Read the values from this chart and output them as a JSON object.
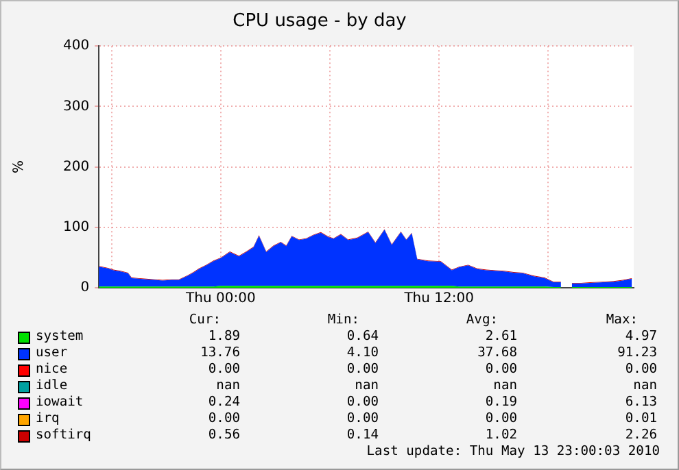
{
  "chart_data": {
    "type": "area",
    "stacked": true,
    "title": "CPU usage - by day",
    "ylabel": "%",
    "x": [
      "2010-05-12T17:18",
      "2010-05-12T17:48",
      "2010-05-12T18:06",
      "2010-05-12T18:30",
      "2010-05-12T18:54",
      "2010-05-12T19:06",
      "2010-05-12T19:30",
      "2010-05-12T19:54",
      "2010-05-12T20:24",
      "2010-05-12T20:48",
      "2010-05-12T21:18",
      "2010-05-12T21:42",
      "2010-05-12T22:12",
      "2010-05-12T22:30",
      "2010-05-12T22:48",
      "2010-05-12T23:12",
      "2010-05-12T23:36",
      "2010-05-13T00:00",
      "2010-05-13T00:30",
      "2010-05-13T01:00",
      "2010-05-13T01:24",
      "2010-05-13T01:48",
      "2010-05-13T02:06",
      "2010-05-13T02:30",
      "2010-05-13T02:54",
      "2010-05-13T03:18",
      "2010-05-13T03:36",
      "2010-05-13T03:54",
      "2010-05-13T04:18",
      "2010-05-13T04:42",
      "2010-05-13T05:06",
      "2010-05-13T05:30",
      "2010-05-13T05:54",
      "2010-05-13T06:12",
      "2010-05-13T06:36",
      "2010-05-13T07:00",
      "2010-05-13T07:30",
      "2010-05-13T08:06",
      "2010-05-13T08:30",
      "2010-05-13T09:00",
      "2010-05-13T09:24",
      "2010-05-13T09:54",
      "2010-05-13T10:12",
      "2010-05-13T10:30",
      "2010-05-13T10:48",
      "2010-05-13T11:24",
      "2010-05-13T12:06",
      "2010-05-13T12:42",
      "2010-05-13T13:06",
      "2010-05-13T13:36",
      "2010-05-13T14:06",
      "2010-05-13T14:36",
      "2010-05-13T15:06",
      "2010-05-13T15:36",
      "2010-05-13T16:06",
      "2010-05-13T16:36",
      "2010-05-13T17:12",
      "2010-05-13T17:48",
      "2010-05-13T18:18",
      "2010-05-13T18:42",
      "2010-05-13T19:00",
      "2010-05-13T19:18",
      "2010-05-13T19:48",
      "2010-05-13T20:18",
      "2010-05-13T21:00",
      "2010-05-13T21:36",
      "2010-05-13T22:06",
      "2010-05-13T22:36"
    ],
    "xlim": [
      "2010-05-12T17:18",
      "2010-05-13T22:42"
    ],
    "xticks": [
      {
        "value": "2010-05-12T18:00",
        "label": null
      },
      {
        "value": "2010-05-13T00:00",
        "label": "Thu 00:00"
      },
      {
        "value": "2010-05-13T06:00",
        "label": null
      },
      {
        "value": "2010-05-13T12:00",
        "label": "Thu 12:00"
      },
      {
        "value": "2010-05-13T18:00",
        "label": null
      }
    ],
    "ylim": [
      0,
      400
    ],
    "yticks": [
      0,
      100,
      200,
      300,
      400
    ],
    "grid": true,
    "legend": "bottom",
    "marker": "none",
    "series": [
      {
        "name": "system",
        "color": "#00e000",
        "values": [
          2,
          2,
          2,
          2,
          2,
          2,
          2,
          2,
          2,
          2,
          2,
          2,
          2,
          2,
          2,
          2,
          2,
          3,
          3,
          3,
          3,
          3,
          3,
          3,
          3,
          3,
          3,
          3,
          3,
          3,
          3,
          3,
          3,
          3,
          3,
          3,
          3,
          3,
          3,
          3,
          3,
          3,
          3,
          3,
          3,
          3,
          3,
          3,
          2,
          2,
          2,
          2,
          2,
          2,
          2,
          2,
          2,
          2,
          1,
          1,
          null,
          1,
          1,
          1,
          1,
          1,
          1,
          1
        ]
      },
      {
        "name": "user",
        "color": "#0033ff",
        "values": [
          33,
          30,
          27,
          25,
          22,
          14,
          13,
          12,
          11,
          10,
          11,
          11,
          18,
          23,
          29,
          35,
          42,
          46,
          56,
          49,
          56,
          64,
          83,
          56,
          66,
          72,
          66,
          82,
          76,
          78,
          84,
          88,
          81,
          78,
          85,
          76,
          79,
          89,
          71,
          93,
          68,
          89,
          76,
          87,
          44,
          41,
          40,
          26,
          32,
          35,
          29,
          27,
          26,
          25,
          23,
          22,
          17,
          14,
          8,
          8,
          null,
          6,
          6,
          7,
          8,
          9,
          11,
          14
        ]
      },
      {
        "name": "nice",
        "color": "#ff0000",
        "values": [
          null,
          null,
          null,
          null,
          null,
          null,
          null,
          null,
          null,
          null,
          null,
          null,
          null,
          null,
          null,
          null,
          null,
          null,
          null,
          null,
          null,
          null,
          null,
          null,
          null,
          null,
          null,
          null,
          null,
          null,
          null,
          null,
          null,
          null,
          null,
          null,
          null,
          null,
          null,
          null,
          null,
          null,
          null,
          null,
          null,
          null,
          null,
          null,
          null,
          null,
          null,
          null,
          null,
          null,
          null,
          null,
          null,
          null,
          null,
          null,
          null,
          null,
          null,
          null,
          null,
          null,
          null,
          null
        ]
      },
      {
        "name": "idle",
        "color": "#00a0a0",
        "values": [
          null,
          null,
          null,
          null,
          null,
          null,
          null,
          null,
          null,
          null,
          null,
          null,
          null,
          null,
          null,
          null,
          null,
          null,
          null,
          null,
          null,
          null,
          null,
          null,
          null,
          null,
          null,
          null,
          null,
          null,
          null,
          null,
          null,
          null,
          null,
          null,
          null,
          null,
          null,
          null,
          null,
          null,
          null,
          null,
          null,
          null,
          null,
          null,
          null,
          null,
          null,
          null,
          null,
          null,
          null,
          null,
          null,
          null,
          null,
          null,
          null,
          null,
          null,
          null,
          null,
          null,
          null,
          null
        ]
      },
      {
        "name": "iowait",
        "color": "#ff00ff",
        "values": [
          null,
          null,
          null,
          null,
          null,
          null,
          null,
          null,
          null,
          null,
          null,
          null,
          null,
          null,
          null,
          null,
          null,
          null,
          null,
          null,
          null,
          null,
          null,
          null,
          null,
          null,
          null,
          null,
          null,
          null,
          null,
          null,
          null,
          null,
          null,
          null,
          null,
          null,
          null,
          null,
          null,
          null,
          null,
          null,
          null,
          null,
          null,
          null,
          null,
          null,
          null,
          null,
          null,
          null,
          null,
          null,
          null,
          null,
          null,
          null,
          null,
          null,
          null,
          null,
          null,
          null,
          null,
          null
        ]
      },
      {
        "name": "irq",
        "color": "#ffa500",
        "values": [
          null,
          null,
          null,
          null,
          null,
          null,
          null,
          null,
          null,
          null,
          null,
          null,
          null,
          null,
          null,
          null,
          null,
          null,
          null,
          null,
          null,
          null,
          null,
          null,
          null,
          null,
          null,
          null,
          null,
          null,
          null,
          null,
          null,
          null,
          null,
          null,
          null,
          null,
          null,
          null,
          null,
          null,
          null,
          null,
          null,
          null,
          null,
          null,
          null,
          null,
          null,
          null,
          null,
          null,
          null,
          null,
          null,
          null,
          null,
          null,
          null,
          null,
          null,
          null,
          null,
          null,
          null,
          null
        ]
      },
      {
        "name": "softirq",
        "color": "#cc0000",
        "values": [
          1,
          1,
          1,
          1,
          1,
          1,
          1,
          1,
          1,
          1,
          1,
          1,
          1,
          1,
          1,
          1,
          1,
          1,
          1,
          1,
          1,
          1,
          1,
          1,
          1,
          1,
          1,
          1,
          1,
          1,
          1,
          1,
          1,
          1,
          1,
          1,
          1,
          1,
          1,
          1,
          1,
          1,
          1,
          1,
          1,
          1,
          1,
          1,
          1,
          1,
          1,
          1,
          1,
          1,
          1,
          1,
          1,
          1,
          1,
          1,
          null,
          1,
          1,
          1,
          1,
          1,
          1,
          1
        ]
      }
    ],
    "annotations": [
      "Cur:",
      "Min:",
      "Avg:",
      "Max:",
      "1.89",
      "0.64",
      "2.61",
      "4.97",
      "13.76",
      "4.10",
      "37.68",
      "91.23",
      "0.00",
      "0.00",
      "0.00",
      "0.00",
      "nan",
      "nan",
      "nan",
      "nan",
      "0.24",
      "0.00",
      "0.19",
      "6.13",
      "0.00",
      "0.00",
      "0.00",
      "0.01",
      "0.56",
      "0.14",
      "1.02",
      "2.26",
      "Last update: Thu May 13 23:00:03 2010"
    ]
  }
}
